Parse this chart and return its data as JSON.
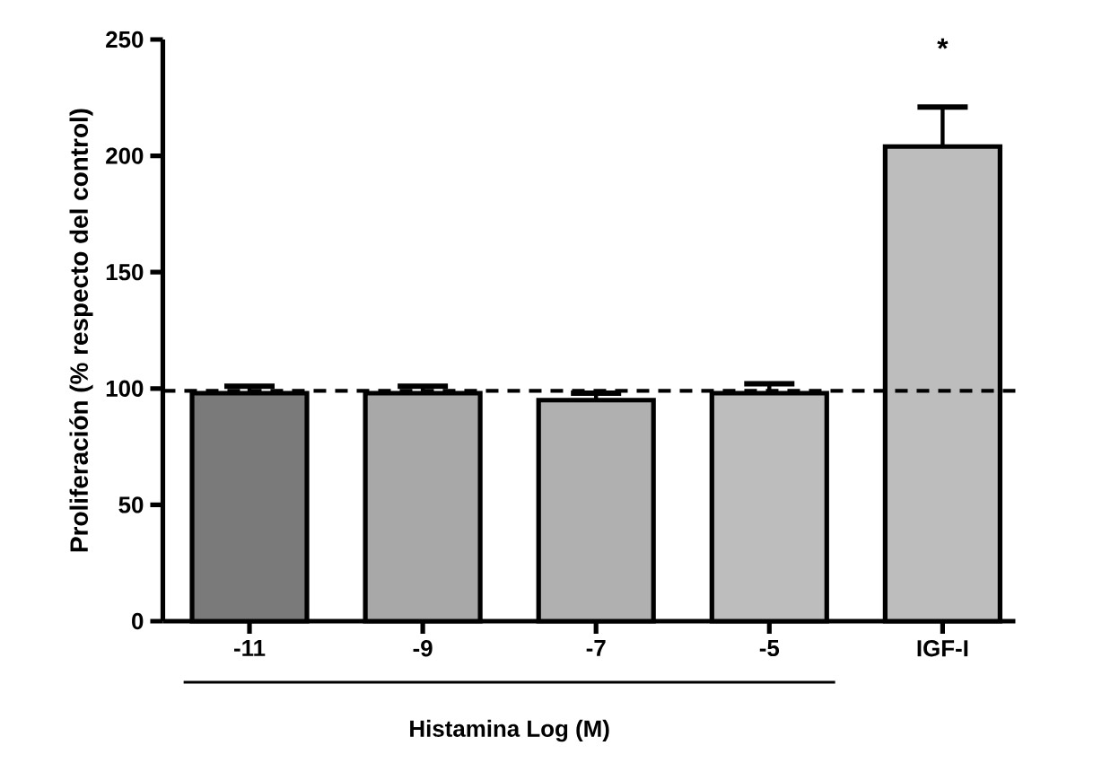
{
  "chart_data": {
    "type": "bar",
    "categories": [
      "-11",
      "-9",
      "-7",
      "-5",
      "IGF-I"
    ],
    "values": [
      98,
      98,
      95,
      98,
      204
    ],
    "errors": [
      3,
      3,
      3,
      4,
      17
    ],
    "colors": [
      "#7a7a7a",
      "#a8a8a8",
      "#b0b0b0",
      "#bdbdbd",
      "#bdbdbd"
    ],
    "xlabel": "Histamina Log (M)",
    "ylabel": "Proliferación (% respecto del control)",
    "ylim": [
      0,
      250
    ],
    "yticks": [
      0,
      50,
      100,
      150,
      200,
      250
    ],
    "ref_lines": [
      {
        "axis": "y",
        "value": 99,
        "line_style": "dashed"
      }
    ],
    "annotations": [
      "*"
    ]
  }
}
